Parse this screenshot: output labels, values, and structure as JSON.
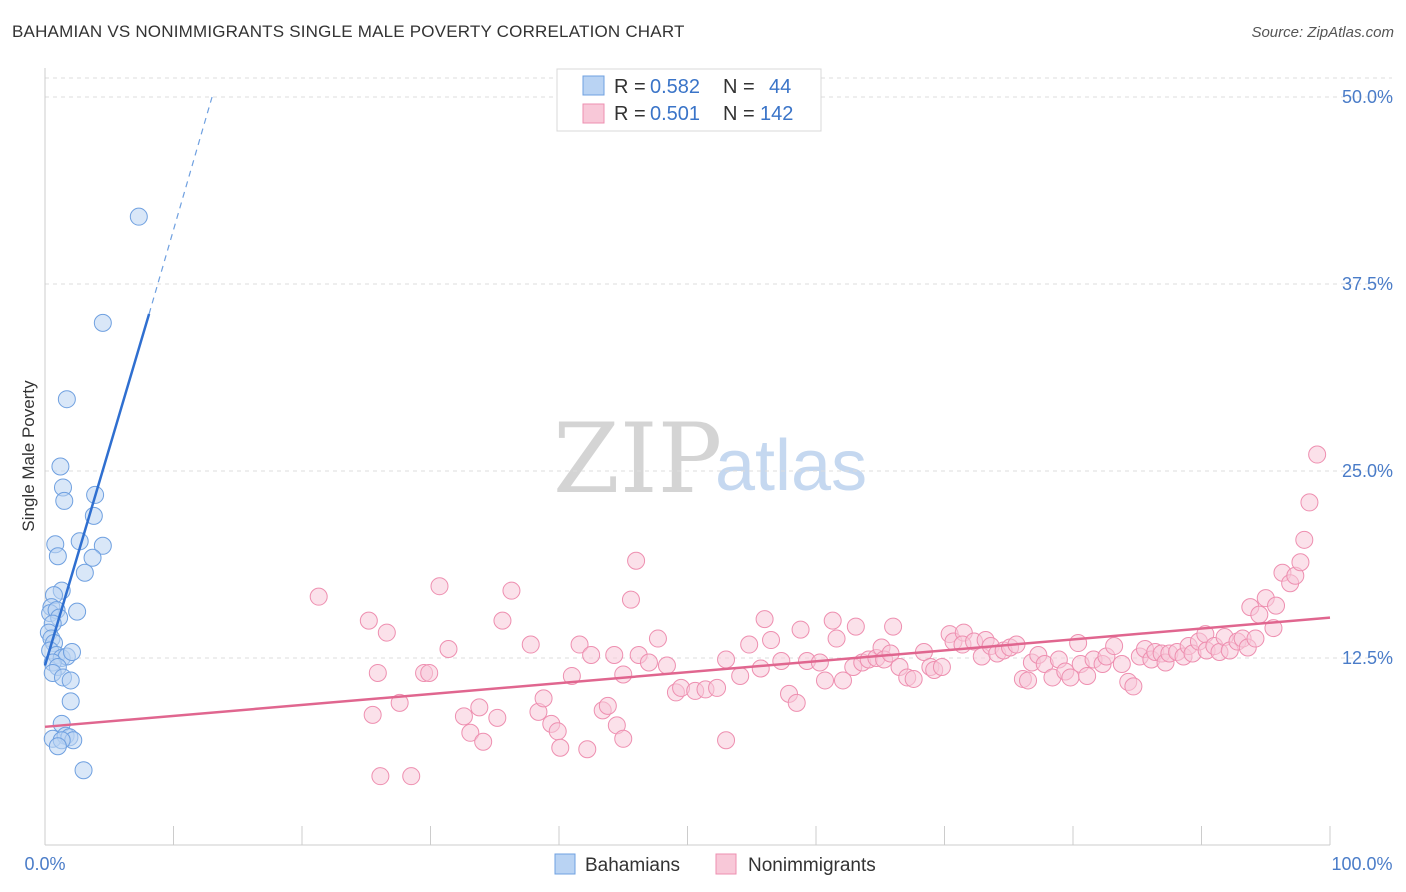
{
  "title": "BAHAMIAN VS NONIMMIGRANTS SINGLE MALE POVERTY CORRELATION CHART",
  "source": "Source: ZipAtlas.com",
  "watermark": {
    "zip": "ZIP",
    "atlas": "atlas"
  },
  "legend": {
    "rows": [
      {
        "r_label": "R =",
        "r_value": "0.582",
        "n_label": "N =",
        "n_value": "44",
        "color": "#a9c8f0"
      },
      {
        "r_label": "R =",
        "r_value": "0.501",
        "n_label": "N =",
        "n_value": "142",
        "color": "#f4b6c9"
      }
    ]
  },
  "bottom_legend": [
    {
      "label": "Bahamians",
      "color": "#a9c8f0"
    },
    {
      "label": "Nonimmigrants",
      "color": "#f4b6c9"
    }
  ],
  "chart_data": {
    "type": "scatter",
    "title": "BAHAMIAN VS NONIMMIGRANTS SINGLE MALE POVERTY CORRELATION CHART",
    "xlabel": "",
    "ylabel": "Single Male Poverty",
    "xlim": [
      0,
      100
    ],
    "ylim": [
      0,
      50
    ],
    "x_tick_labels": [
      "0.0%",
      "100.0%"
    ],
    "y_ticks": [
      12.5,
      25.0,
      37.5,
      50.0
    ],
    "y_tick_labels": [
      "12.5%",
      "25.0%",
      "37.5%",
      "50.0%"
    ],
    "grid": true,
    "series": [
      {
        "name": "Bahamians",
        "color": "#6fa0e0",
        "fill": "#b9d3f3",
        "trend": {
          "x": [
            0,
            8.1
          ],
          "y": [
            12.0,
            35.5
          ],
          "dash_to": [
            13.0,
            50.0
          ]
        },
        "points": [
          [
            7.3,
            42.0
          ],
          [
            4.5,
            34.9
          ],
          [
            1.7,
            29.8
          ],
          [
            1.2,
            25.3
          ],
          [
            1.4,
            23.9
          ],
          [
            1.5,
            23.0
          ],
          [
            3.9,
            23.4
          ],
          [
            3.8,
            22.0
          ],
          [
            0.8,
            20.1
          ],
          [
            2.7,
            20.3
          ],
          [
            4.5,
            20.0
          ],
          [
            1.0,
            19.3
          ],
          [
            3.7,
            19.2
          ],
          [
            3.1,
            18.2
          ],
          [
            1.3,
            17.0
          ],
          [
            0.7,
            16.7
          ],
          [
            0.5,
            15.9
          ],
          [
            0.4,
            15.5
          ],
          [
            0.9,
            15.7
          ],
          [
            1.1,
            15.2
          ],
          [
            2.5,
            15.6
          ],
          [
            0.6,
            14.8
          ],
          [
            0.3,
            14.2
          ],
          [
            0.5,
            13.8
          ],
          [
            0.7,
            13.5
          ],
          [
            0.4,
            13.0
          ],
          [
            0.9,
            12.7
          ],
          [
            1.3,
            12.5
          ],
          [
            1.7,
            12.6
          ],
          [
            2.1,
            12.9
          ],
          [
            0.6,
            12.2
          ],
          [
            1.0,
            11.9
          ],
          [
            0.6,
            11.5
          ],
          [
            1.4,
            11.2
          ],
          [
            2.0,
            11.0
          ],
          [
            2.0,
            9.6
          ],
          [
            1.3,
            8.1
          ],
          [
            0.6,
            7.1
          ],
          [
            1.6,
            7.3
          ],
          [
            1.9,
            7.2
          ],
          [
            2.2,
            7.0
          ],
          [
            1.3,
            7.0
          ],
          [
            1.0,
            6.6
          ],
          [
            3.0,
            5.0
          ]
        ]
      },
      {
        "name": "Nonimmigrants",
        "color": "#ee8fb0",
        "fill": "#f8c8d8",
        "trend": {
          "x": [
            0,
            100
          ],
          "y": [
            7.9,
            15.2
          ]
        },
        "points": [
          [
            21.3,
            16.6
          ],
          [
            25.2,
            15.0
          ],
          [
            26.6,
            14.2
          ],
          [
            25.9,
            11.5
          ],
          [
            25.5,
            8.7
          ],
          [
            26.1,
            4.6
          ],
          [
            27.6,
            9.5
          ],
          [
            28.5,
            4.6
          ],
          [
            29.5,
            11.5
          ],
          [
            29.9,
            11.5
          ],
          [
            30.7,
            17.3
          ],
          [
            31.4,
            13.1
          ],
          [
            32.6,
            8.6
          ],
          [
            33.1,
            7.5
          ],
          [
            33.8,
            9.2
          ],
          [
            34.1,
            6.9
          ],
          [
            35.2,
            8.5
          ],
          [
            35.6,
            15.0
          ],
          [
            36.3,
            17.0
          ],
          [
            37.8,
            13.4
          ],
          [
            38.4,
            8.9
          ],
          [
            38.8,
            9.8
          ],
          [
            39.4,
            8.1
          ],
          [
            39.9,
            7.6
          ],
          [
            40.1,
            6.5
          ],
          [
            41.0,
            11.3
          ],
          [
            41.6,
            13.4
          ],
          [
            42.2,
            6.4
          ],
          [
            42.5,
            12.7
          ],
          [
            43.4,
            9.0
          ],
          [
            43.8,
            9.3
          ],
          [
            44.5,
            8.0
          ],
          [
            44.3,
            12.7
          ],
          [
            45.0,
            11.4
          ],
          [
            45.0,
            7.1
          ],
          [
            45.6,
            16.4
          ],
          [
            46.0,
            19.0
          ],
          [
            46.2,
            12.7
          ],
          [
            47.0,
            12.2
          ],
          [
            47.7,
            13.8
          ],
          [
            48.4,
            12.0
          ],
          [
            49.1,
            10.2
          ],
          [
            49.5,
            10.5
          ],
          [
            50.6,
            10.3
          ],
          [
            51.4,
            10.4
          ],
          [
            52.3,
            10.5
          ],
          [
            53.0,
            12.4
          ],
          [
            53.0,
            7.0
          ],
          [
            54.1,
            11.3
          ],
          [
            54.8,
            13.4
          ],
          [
            55.7,
            11.8
          ],
          [
            56.5,
            13.7
          ],
          [
            57.3,
            12.3
          ],
          [
            56.0,
            15.1
          ],
          [
            57.9,
            10.1
          ],
          [
            58.5,
            9.5
          ],
          [
            58.8,
            14.4
          ],
          [
            59.3,
            12.3
          ],
          [
            60.3,
            12.2
          ],
          [
            60.7,
            11.0
          ],
          [
            61.3,
            15.0
          ],
          [
            61.6,
            13.8
          ],
          [
            62.1,
            11.0
          ],
          [
            62.9,
            11.9
          ],
          [
            63.1,
            14.6
          ],
          [
            63.6,
            12.2
          ],
          [
            64.1,
            12.4
          ],
          [
            64.7,
            12.5
          ],
          [
            65.1,
            13.2
          ],
          [
            65.3,
            12.4
          ],
          [
            65.8,
            12.8
          ],
          [
            66.0,
            14.6
          ],
          [
            66.5,
            11.9
          ],
          [
            67.1,
            11.2
          ],
          [
            67.6,
            11.1
          ],
          [
            68.4,
            12.9
          ],
          [
            68.9,
            11.9
          ],
          [
            69.2,
            11.7
          ],
          [
            69.8,
            11.9
          ],
          [
            70.4,
            14.1
          ],
          [
            70.7,
            13.6
          ],
          [
            71.5,
            14.2
          ],
          [
            71.4,
            13.4
          ],
          [
            72.3,
            13.6
          ],
          [
            72.9,
            12.6
          ],
          [
            73.2,
            13.7
          ],
          [
            73.6,
            13.3
          ],
          [
            74.1,
            12.8
          ],
          [
            74.6,
            13.0
          ],
          [
            75.1,
            13.2
          ],
          [
            75.6,
            13.4
          ],
          [
            76.1,
            11.1
          ],
          [
            76.5,
            11.0
          ],
          [
            76.8,
            12.2
          ],
          [
            77.3,
            12.7
          ],
          [
            77.8,
            12.1
          ],
          [
            78.4,
            11.2
          ],
          [
            78.9,
            12.4
          ],
          [
            79.4,
            11.6
          ],
          [
            79.8,
            11.2
          ],
          [
            80.4,
            13.5
          ],
          [
            80.6,
            12.1
          ],
          [
            81.1,
            11.3
          ],
          [
            81.6,
            12.4
          ],
          [
            82.3,
            12.1
          ],
          [
            82.6,
            12.6
          ],
          [
            83.2,
            13.3
          ],
          [
            83.8,
            12.1
          ],
          [
            84.3,
            10.9
          ],
          [
            84.7,
            10.6
          ],
          [
            85.2,
            12.6
          ],
          [
            85.6,
            13.1
          ],
          [
            86.1,
            12.4
          ],
          [
            86.4,
            12.9
          ],
          [
            86.9,
            12.8
          ],
          [
            87.2,
            12.2
          ],
          [
            87.5,
            12.8
          ],
          [
            88.1,
            12.9
          ],
          [
            88.6,
            12.6
          ],
          [
            89.0,
            13.3
          ],
          [
            89.3,
            12.8
          ],
          [
            89.8,
            13.6
          ],
          [
            90.3,
            14.1
          ],
          [
            90.4,
            13.0
          ],
          [
            91.0,
            13.3
          ],
          [
            91.4,
            12.9
          ],
          [
            91.8,
            13.9
          ],
          [
            92.2,
            13.0
          ],
          [
            92.8,
            13.6
          ],
          [
            93.2,
            13.8
          ],
          [
            93.6,
            13.2
          ],
          [
            93.8,
            15.9
          ],
          [
            94.2,
            13.8
          ],
          [
            94.5,
            15.4
          ],
          [
            95.0,
            16.5
          ],
          [
            95.6,
            14.5
          ],
          [
            95.8,
            16.0
          ],
          [
            96.3,
            18.2
          ],
          [
            96.9,
            17.5
          ],
          [
            97.3,
            18.0
          ],
          [
            97.7,
            18.9
          ],
          [
            98.0,
            20.4
          ],
          [
            98.4,
            22.9
          ],
          [
            99.0,
            26.1
          ]
        ]
      }
    ]
  }
}
